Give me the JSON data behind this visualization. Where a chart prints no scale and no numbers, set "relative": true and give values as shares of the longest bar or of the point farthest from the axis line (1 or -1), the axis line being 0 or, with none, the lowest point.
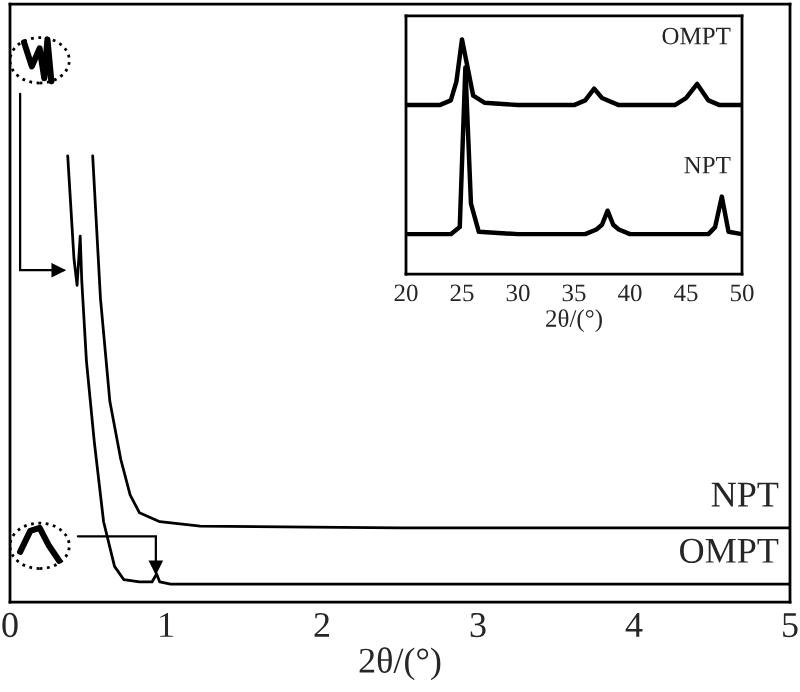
{
  "chart_data": [
    {
      "type": "line",
      "relative": true,
      "xlabel": "2θ/(°)",
      "xlim": [
        0,
        5
      ],
      "xticks": [
        0,
        1,
        2,
        3,
        4,
        5
      ],
      "tick_labels": "x",
      "grid": false,
      "legend": false,
      "series": [
        {
          "name": "NPT",
          "color": "#000000",
          "x": [
            0.53,
            0.58,
            0.64,
            0.71,
            0.77,
            0.83,
            0.96,
            1.22,
            2.5,
            5.0
          ],
          "values": [
            1,
            0.68,
            0.45,
            0.32,
            0.24,
            0.2,
            0.18,
            0.17,
            0.166,
            0.166
          ]
        },
        {
          "name": "OMPT",
          "color": "#000000",
          "x": [
            0.37,
            0.41,
            0.43,
            0.45,
            0.46,
            0.49,
            0.54,
            0.6,
            0.67,
            0.73,
            0.83,
            0.91,
            0.94,
            0.96,
            1.03,
            5.0
          ],
          "values": [
            1,
            0.77,
            0.71,
            0.82,
            0.72,
            0.54,
            0.36,
            0.18,
            0.08,
            0.05,
            0.045,
            0.045,
            0.063,
            0.045,
            0.04,
            0.04
          ]
        }
      ]
    },
    {
      "type": "line",
      "relative": true,
      "xlabel": "2θ/(°)",
      "xlim": [
        20,
        50
      ],
      "xticks": [
        20,
        25,
        30,
        35,
        40,
        45,
        50
      ],
      "tick_labels": "x",
      "grid": false,
      "legend": false,
      "series": [
        {
          "name": "OMPT",
          "color": "#000000",
          "x": [
            20,
            23,
            24,
            24.5,
            25,
            25.5,
            26,
            27,
            30,
            35,
            36,
            36.8,
            37.5,
            39,
            44,
            45,
            46,
            47,
            48,
            50
          ],
          "values": [
            0.72,
            0.72,
            0.74,
            0.82,
            1.0,
            0.88,
            0.76,
            0.73,
            0.72,
            0.72,
            0.74,
            0.79,
            0.75,
            0.72,
            0.72,
            0.75,
            0.81,
            0.74,
            0.72,
            0.72
          ]
        },
        {
          "name": "NPT",
          "color": "#000000",
          "x": [
            20,
            24,
            24.8,
            25.3,
            25.8,
            26.5,
            30,
            36,
            37,
            37.5,
            38,
            38.5,
            39,
            40,
            47,
            47.6,
            48.2,
            48.8,
            50
          ],
          "values": [
            0.17,
            0.17,
            0.2,
            0.88,
            0.3,
            0.18,
            0.17,
            0.17,
            0.19,
            0.21,
            0.27,
            0.21,
            0.19,
            0.17,
            0.17,
            0.2,
            0.33,
            0.18,
            0.17
          ]
        }
      ]
    }
  ]
}
